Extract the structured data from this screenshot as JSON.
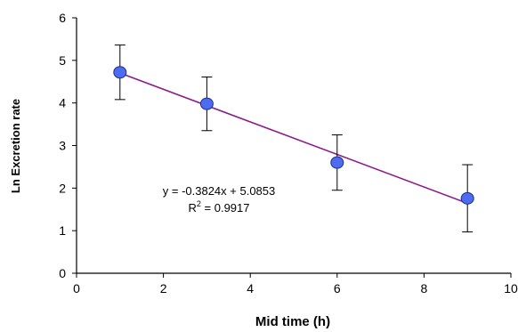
{
  "chart_data": {
    "type": "scatter",
    "title": "",
    "xlabel": "Mid time (h)",
    "ylabel": "Ln Excretion rate",
    "xlim": [
      0,
      10
    ],
    "ylim": [
      0,
      6
    ],
    "xticks": [
      "0",
      "2",
      "4",
      "6",
      "8",
      "10"
    ],
    "yticks": [
      "0",
      "1",
      "2",
      "3",
      "4",
      "5",
      "6"
    ],
    "grid": false,
    "legend": "none",
    "series": [
      {
        "x": [
          1,
          3,
          6,
          9
        ],
        "y": [
          4.72,
          3.98,
          2.6,
          1.76
        ],
        "error": [
          0.64,
          0.63,
          0.65,
          0.79
        ]
      }
    ],
    "trendline": {
      "slope": -0.3824,
      "intercept": 5.0853,
      "x_range": [
        1,
        9
      ],
      "equation": "y = -0.3824x + 5.0853",
      "r2_prefix": "R",
      "r2_sup": "2",
      "r2_value": " = 0.9917"
    },
    "colors": {
      "marker_fill": "#4d6cf0",
      "marker_stroke": "#1b2f8c",
      "trendline": "#8b1a8b",
      "axis": "#000000"
    }
  }
}
